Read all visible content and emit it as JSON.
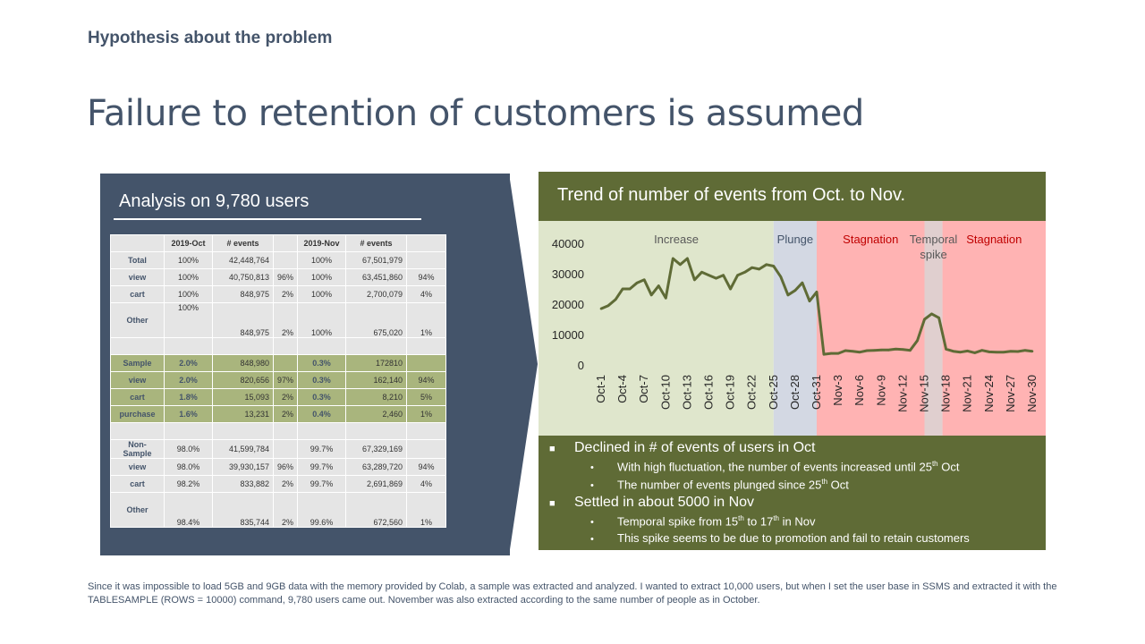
{
  "header": {
    "subtitle": "Hypothesis about the problem",
    "title": "Failure to retention of customers is assumed"
  },
  "left": {
    "title": "Analysis on 9,780 users",
    "columns": [
      "",
      "2019-Oct",
      "# events",
      "",
      "2019-Nov",
      "# events",
      ""
    ],
    "rows": [
      {
        "label": "Total",
        "a": "100%",
        "b": "42,448,764",
        "c": "",
        "d": "100%",
        "e": "67,501,979",
        "f": "",
        "kind": "plain"
      },
      {
        "label": "view",
        "a": "100%",
        "b": "40,750,813",
        "c": "96%",
        "d": "100%",
        "e": "63,451,860",
        "f": "94%",
        "kind": "plain"
      },
      {
        "label": "cart",
        "a": "100%",
        "b": "848,975",
        "c": "2%",
        "d": "100%",
        "e": "2,700,079",
        "f": "4%",
        "kind": "plain"
      },
      {
        "label": "Other",
        "a": "100%",
        "b": "848,975",
        "c": "2%",
        "d": "100%",
        "e": "675,020",
        "f": "1%",
        "kind": "tall"
      },
      {
        "label": "",
        "a": "",
        "b": "",
        "c": "",
        "d": "",
        "e": "",
        "f": "",
        "kind": "space"
      },
      {
        "label": "Sample",
        "a": "2.0%",
        "b": "848,980",
        "c": "",
        "d": "0.3%",
        "e": "172810",
        "f": "",
        "kind": "green"
      },
      {
        "label": "view",
        "a": "2.0%",
        "b": "820,656",
        "c": "97%",
        "d": "0.3%",
        "e": "162,140",
        "f": "94%",
        "kind": "green"
      },
      {
        "label": "cart",
        "a": "1.8%",
        "b": "15,093",
        "c": "2%",
        "d": "0.3%",
        "e": "8,210",
        "f": "5%",
        "kind": "green"
      },
      {
        "label": "purchase",
        "a": "1.6%",
        "b": "13,231",
        "c": "2%",
        "d": "0.4%",
        "e": "2,460",
        "f": "1%",
        "kind": "green"
      },
      {
        "label": "",
        "a": "",
        "b": "",
        "c": "",
        "d": "",
        "e": "",
        "f": "",
        "kind": "space"
      },
      {
        "label": "Non-Sample",
        "a": "98.0%",
        "b": "41,599,784",
        "c": "",
        "d": "99.7%",
        "e": "67,329,169",
        "f": "",
        "kind": "plain"
      },
      {
        "label": "view",
        "a": "98.0%",
        "b": "39,930,157",
        "c": "96%",
        "d": "99.7%",
        "e": "63,289,720",
        "f": "94%",
        "kind": "plain"
      },
      {
        "label": "cart",
        "a": "98.2%",
        "b": "833,882",
        "c": "2%",
        "d": "99.7%",
        "e": "2,691,869",
        "f": "4%",
        "kind": "plain"
      },
      {
        "label": "Other",
        "a": "98.4%",
        "b": "835,744",
        "c": "2%",
        "d": "99.6%",
        "e": "672,560",
        "f": "1%",
        "kind": "tall"
      }
    ]
  },
  "chart": {
    "title": "Trend of number of events from Oct. to Nov.",
    "regions": [
      {
        "label": "Increase",
        "from": 0,
        "to": 24,
        "color": "#dfe6cc",
        "text_color": "#595959"
      },
      {
        "label": "Plunge",
        "from": 24,
        "to": 30,
        "color": "#d3d8e3",
        "text_color": "#44546a"
      },
      {
        "label": "Stagnation",
        "from": 30,
        "to": 45,
        "color": "#ffb3b3",
        "text_color": "#c00000"
      },
      {
        "label": "Temporal spike",
        "from": 45,
        "to": 47.5,
        "color": "#e0cfcf",
        "text_color": "#595959"
      },
      {
        "label": "Stagnation",
        "from": 47.5,
        "to": 61,
        "color": "#ffb3b3",
        "text_color": "#c00000"
      }
    ],
    "line_color": "#5f6b36"
  },
  "chart_data": {
    "type": "line",
    "title": "Trend of number of events from Oct. to Nov.",
    "xlabel": "",
    "ylabel": "",
    "ylim": [
      0,
      40000
    ],
    "yticks": [
      0,
      10000,
      20000,
      30000,
      40000
    ],
    "x_tick_labels": [
      "Oct-1",
      "Oct-4",
      "Oct-7",
      "Oct-10",
      "Oct-13",
      "Oct-16",
      "Oct-19",
      "Oct-22",
      "Oct-25",
      "Oct-28",
      "Oct-31",
      "Nov-3",
      "Nov-6",
      "Nov-9",
      "Nov-12",
      "Nov-15",
      "Nov-18",
      "Nov-21",
      "Nov-24",
      "Nov-27",
      "Nov-30"
    ],
    "x": [
      "Oct-1",
      "Oct-2",
      "Oct-3",
      "Oct-4",
      "Oct-5",
      "Oct-6",
      "Oct-7",
      "Oct-8",
      "Oct-9",
      "Oct-10",
      "Oct-11",
      "Oct-12",
      "Oct-13",
      "Oct-14",
      "Oct-15",
      "Oct-16",
      "Oct-17",
      "Oct-18",
      "Oct-19",
      "Oct-20",
      "Oct-21",
      "Oct-22",
      "Oct-23",
      "Oct-24",
      "Oct-25",
      "Oct-26",
      "Oct-27",
      "Oct-28",
      "Oct-29",
      "Oct-30",
      "Oct-31",
      "Nov-1",
      "Nov-2",
      "Nov-3",
      "Nov-4",
      "Nov-5",
      "Nov-6",
      "Nov-7",
      "Nov-8",
      "Nov-9",
      "Nov-10",
      "Nov-11",
      "Nov-12",
      "Nov-13",
      "Nov-14",
      "Nov-15",
      "Nov-16",
      "Nov-17",
      "Nov-18",
      "Nov-19",
      "Nov-20",
      "Nov-21",
      "Nov-22",
      "Nov-23",
      "Nov-24",
      "Nov-25",
      "Nov-26",
      "Nov-27",
      "Nov-28",
      "Nov-29",
      "Nov-30"
    ],
    "series": [
      {
        "values": [
          18500,
          19500,
          21500,
          25000,
          25000,
          27000,
          28000,
          23000,
          26000,
          22000,
          35000,
          33000,
          35000,
          28000,
          30500,
          29500,
          28500,
          29500,
          25000,
          29500,
          30500,
          32000,
          31500,
          33000,
          32500,
          29000,
          23000,
          24500,
          27000,
          21000,
          24000,
          3500,
          3800,
          3800,
          4700,
          4500,
          4200,
          4700,
          4800,
          4900,
          4900,
          5200,
          5100,
          4800,
          8000,
          15000,
          16800,
          15500,
          5200,
          4500,
          4200,
          4600,
          4000,
          4800,
          4300,
          4200,
          4200,
          4500,
          4400,
          4800,
          4500
        ]
      }
    ],
    "grid": false,
    "legend": "none"
  },
  "notes": {
    "b1": "Declined in # of events of users in Oct",
    "b1a_pre": "With high fluctuation, the number of events increased until 25",
    "b1a_sup": "th",
    "b1a_post": " Oct",
    "b1b_pre": "The number of events plunged since 25",
    "b1b_sup": "th",
    "b1b_post": " Oct",
    "b2": "Settled in about 5000 in Nov",
    "b2a_pre": "Temporal spike from 15",
    "b2a_sup1": "th",
    "b2a_mid": " to 17",
    "b2a_sup2": "th",
    "b2a_post": " in Nov",
    "b2b": "This spike seems to be due to promotion  and fail to retain customers"
  },
  "footnote": "Since it was impossible to load 5GB and 9GB data with the memory  provided by Colab, a sample was extracted and analyzed. I wanted to extract 10,000 users, but when  I set the user base in SSMS and extracted  it with the TABLESAMPLE   (ROWS = 10000) command, 9,780 users came out.  November  was also extracted according to the same number of people as in October."
}
